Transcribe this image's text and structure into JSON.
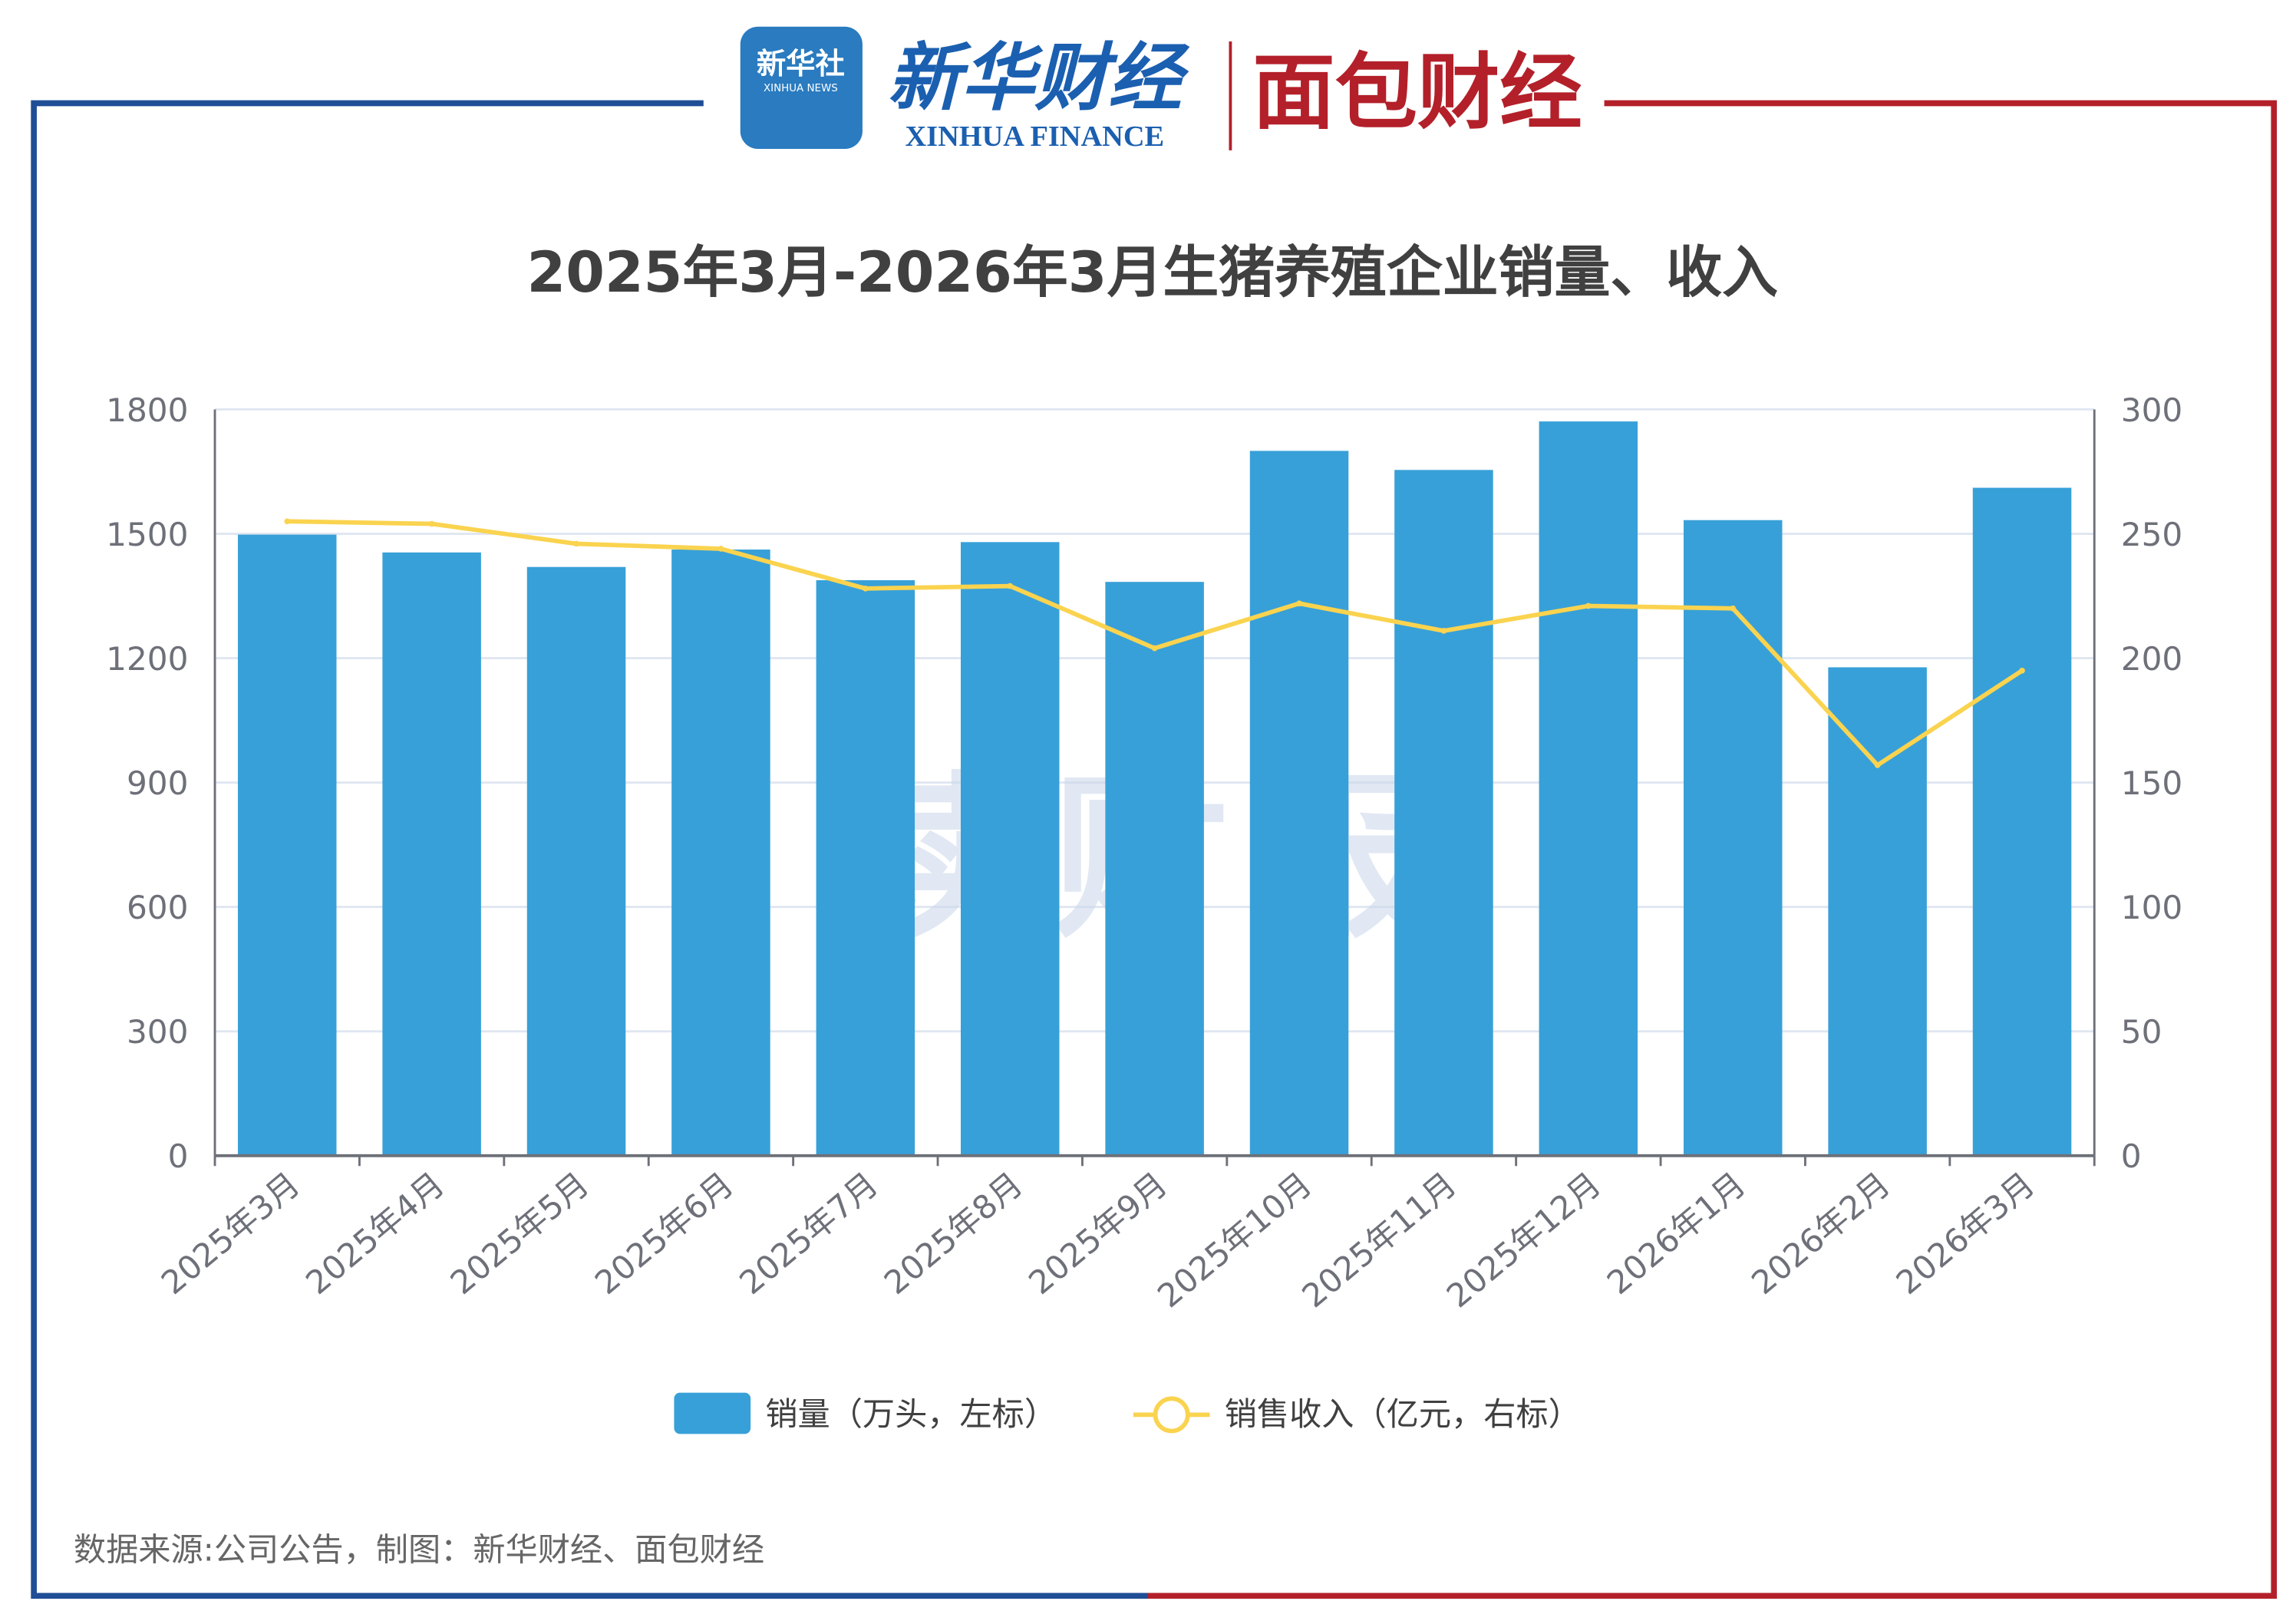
{
  "header": {
    "logo_xinhua": "新华社",
    "logo_xinhua_en": "XINHUA NEWS",
    "logo_finance": "新华财经",
    "logo_finance_en": "XINHUA FINANCE",
    "logo_mianbao": "面包财经",
    "watermark": "读财报"
  },
  "colors": {
    "frame_left": "#1f4e96",
    "frame_right": "#b3202a",
    "bar": "#38a0d8",
    "line": "#fad34f"
  },
  "chart_data": {
    "type": "bar+line",
    "title": "2025年3月-2026年3月生猪养殖企业销量、收入",
    "categories": [
      "2025年3月",
      "2025年4月",
      "2025年5月",
      "2025年6月",
      "2025年7月",
      "2025年8月",
      "2025年9月",
      "2025年10月",
      "2025年11月",
      "2025年12月",
      "2026年1月",
      "2026年2月",
      "2026年3月"
    ],
    "series": [
      {
        "name": "销量（万头，左标）",
        "type": "bar",
        "axis": "left",
        "values": [
          1498,
          1455,
          1420,
          1462,
          1388,
          1480,
          1384,
          1700,
          1654,
          1771,
          1533,
          1178,
          1611
        ]
      },
      {
        "name": "销售收入（亿元，右标）",
        "type": "line",
        "axis": "right",
        "values": [
          255,
          254,
          246,
          244,
          228,
          229,
          204,
          222,
          211,
          221,
          220,
          157,
          195
        ]
      }
    ],
    "y_left": {
      "lim": [
        0,
        1800
      ],
      "ticks": [
        "0",
        "300",
        "600",
        "900",
        "1200",
        "1500",
        "1800"
      ]
    },
    "y_right": {
      "lim": [
        0,
        300
      ],
      "ticks": [
        "0",
        "50",
        "100",
        "150",
        "200",
        "250",
        "300"
      ]
    },
    "grid": true,
    "legend": "bottom"
  },
  "footer": {
    "source": "数据来源:公司公告，制图：新华财经、面包财经"
  }
}
